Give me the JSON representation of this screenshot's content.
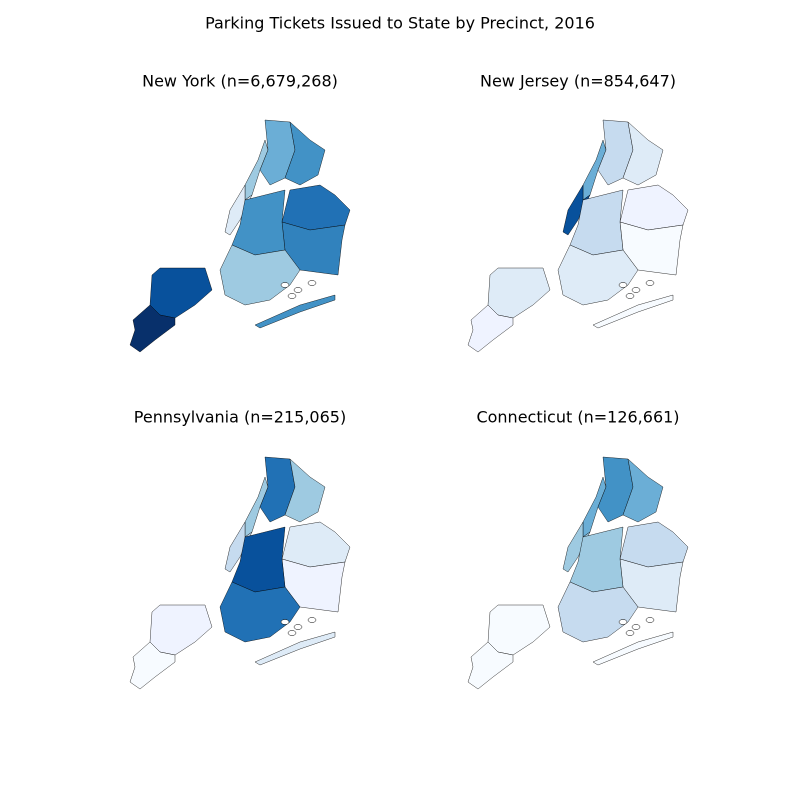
{
  "title": "Parking Tickets Issued to State by Precinct, 2016",
  "panels": [
    {
      "title": "New York (n=6,679,268)"
    },
    {
      "title": "New Jersey (n=854,647)"
    },
    {
      "title": "Pennsylvania (n=215,065)"
    },
    {
      "title": "Connecticut (n=126,661)"
    }
  ]
}
